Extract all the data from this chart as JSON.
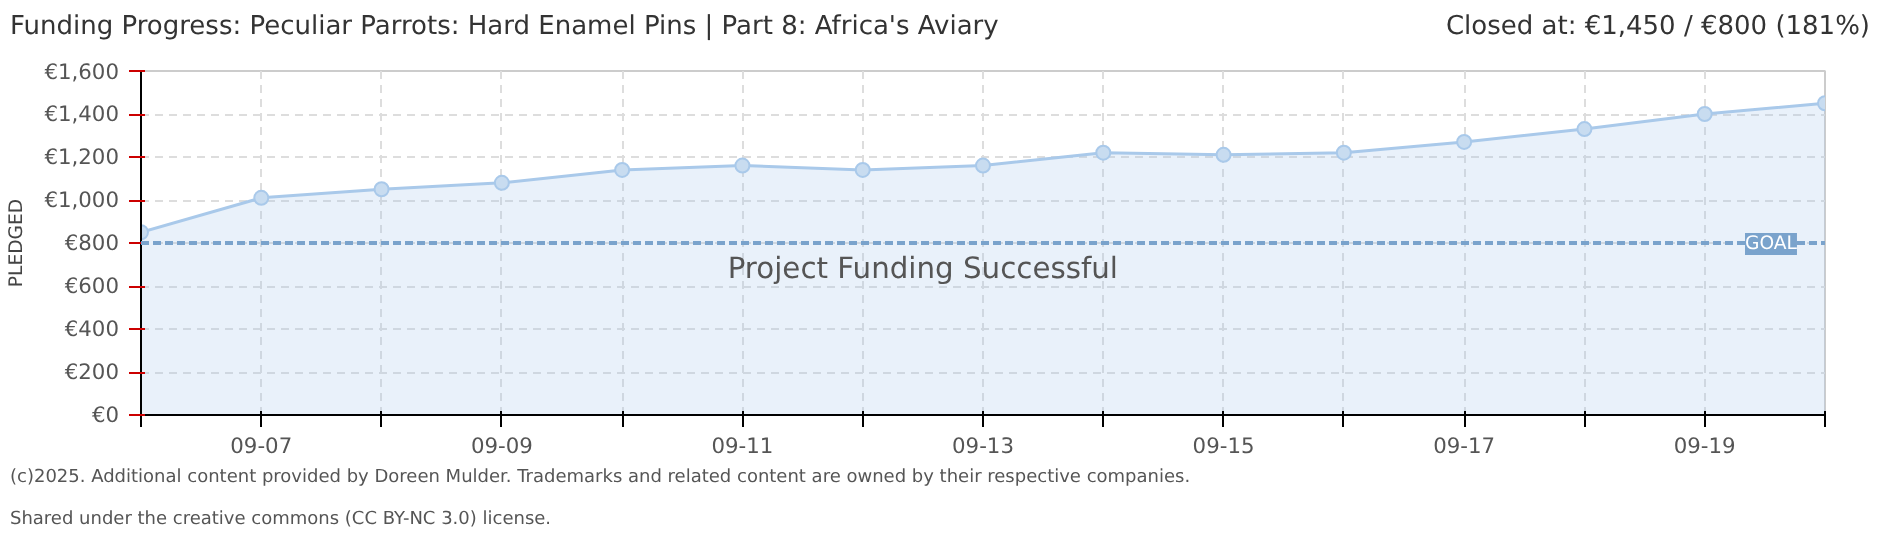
{
  "chart_data": {
    "type": "area",
    "title": "Funding Progress: Peculiar Parrots: Hard Enamel Pins | Part 8: Africa's Aviary",
    "subtitle": "Closed at:  €1,450 /  €800 (181%)",
    "ylabel": "PLEDGED",
    "x": [
      "--09-06",
      "--09-07",
      "--09-08",
      "--09-09",
      "--09-10",
      "--09-11",
      "--09-12",
      "--09-13",
      "--09-14",
      "--09-15",
      "--09-16",
      "--09-17",
      "--09-18",
      "--09-19",
      "--09-20"
    ],
    "series": [
      {
        "color": "#a9c9ea",
        "values": [
          850,
          1010,
          1050,
          1080,
          1140,
          1160,
          1140,
          1160,
          1220,
          1210,
          1220,
          1270,
          1330,
          1400,
          1450
        ]
      }
    ],
    "marker": "circle",
    "grid": true,
    "xlim": [
      "--09-06",
      "--09-20"
    ],
    "xticks": [
      {
        "value": "--09-06",
        "label": null
      },
      {
        "value": "--09-07",
        "label": "09-07"
      },
      {
        "value": "--09-08",
        "label": null
      },
      {
        "value": "--09-09",
        "label": "09-09"
      },
      {
        "value": "--09-10",
        "label": null
      },
      {
        "value": "--09-11",
        "label": "09-11"
      },
      {
        "value": "--09-12",
        "label": null
      },
      {
        "value": "--09-13",
        "label": "09-13"
      },
      {
        "value": "--09-14",
        "label": null
      },
      {
        "value": "--09-15",
        "label": "09-15"
      },
      {
        "value": "--09-16",
        "label": null
      },
      {
        "value": "--09-17",
        "label": "09-17"
      },
      {
        "value": "--09-18",
        "label": null
      },
      {
        "value": "--09-19",
        "label": "09-19"
      },
      {
        "value": "--09-20",
        "label": null
      }
    ],
    "ylim": [
      0,
      1600
    ],
    "yticks": [
      {
        "value": 0,
        "label": "€0"
      },
      {
        "value": 200,
        "label": "€200"
      },
      {
        "value": 400,
        "label": "€400"
      },
      {
        "value": 600,
        "label": "€600"
      },
      {
        "value": 800,
        "label": "€800"
      },
      {
        "value": 1000,
        "label": "€1,000"
      },
      {
        "value": 1200,
        "label": "€1,200"
      },
      {
        "value": 1400,
        "label": "€1,400"
      },
      {
        "value": 1600,
        "label": "€1,600"
      }
    ],
    "ref_lines": [
      {
        "axis": "y",
        "value": 800,
        "label": "GOAL",
        "color": "#7aa3cc",
        "line_style": "dashed"
      }
    ],
    "annotations": [
      "Project Funding Successful",
      "(c)2025. Additional content provided by Doreen Mulder. Trademarks and related content are owned by their respective companies.",
      "Shared under the creative commons (CC BY-NC 3.0) license."
    ]
  }
}
